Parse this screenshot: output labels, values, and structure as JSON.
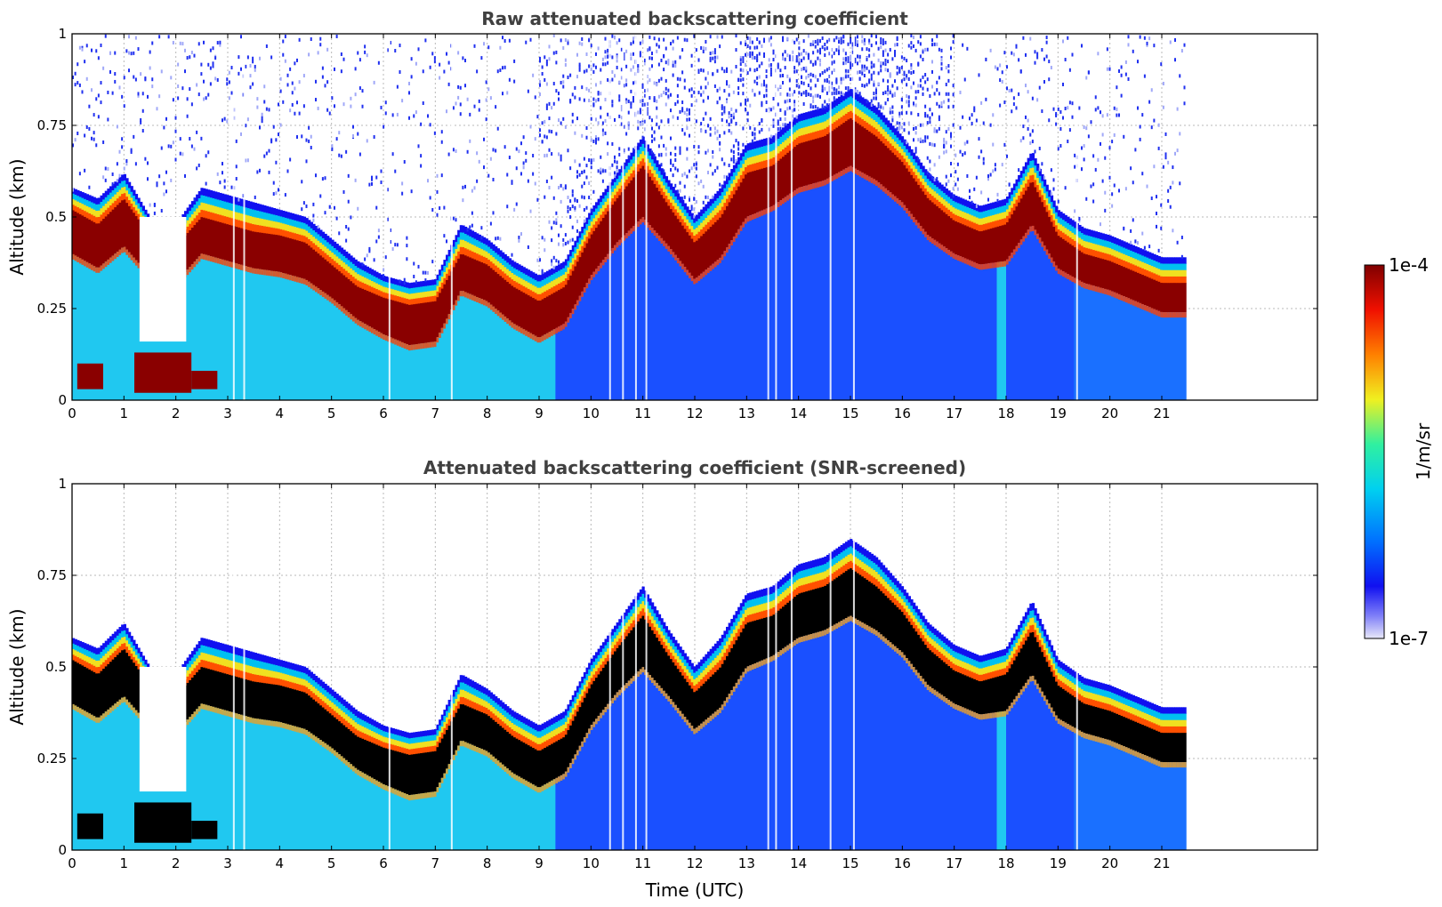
{
  "chart_data": [
    {
      "type": "heatmap",
      "title": "Raw attenuated backscattering coefficient",
      "xlabel": "",
      "ylabel": "Altitude (km)",
      "xlim": [
        0,
        24
      ],
      "ylim": [
        0,
        1
      ],
      "x_ticks": [
        "0",
        "1",
        "2",
        "3",
        "4",
        "5",
        "6",
        "7",
        "8",
        "9",
        "10",
        "11",
        "12",
        "13",
        "14",
        "15",
        "16",
        "17",
        "18",
        "19",
        "20",
        "21"
      ],
      "y_ticks": [
        "0",
        "0.25",
        "0.5",
        "0.75",
        "1"
      ],
      "grid": true,
      "data_end_time": 21.45,
      "layer_top": [
        [
          0,
          0.58
        ],
        [
          0.5,
          0.55
        ],
        [
          1.0,
          0.62
        ],
        [
          1.5,
          0.5
        ],
        [
          2.0,
          0.48
        ],
        [
          2.5,
          0.58
        ],
        [
          3.0,
          0.56
        ],
        [
          3.5,
          0.54
        ],
        [
          4.0,
          0.52
        ],
        [
          4.5,
          0.5
        ],
        [
          5.0,
          0.44
        ],
        [
          5.5,
          0.38
        ],
        [
          6.0,
          0.34
        ],
        [
          6.5,
          0.32
        ],
        [
          7.0,
          0.33
        ],
        [
          7.5,
          0.48
        ],
        [
          8.0,
          0.44
        ],
        [
          8.5,
          0.38
        ],
        [
          9.0,
          0.34
        ],
        [
          9.5,
          0.38
        ],
        [
          10.0,
          0.52
        ],
        [
          10.5,
          0.62
        ],
        [
          11.0,
          0.72
        ],
        [
          11.5,
          0.6
        ],
        [
          12.0,
          0.5
        ],
        [
          12.5,
          0.58
        ],
        [
          13.0,
          0.7
        ],
        [
          13.5,
          0.72
        ],
        [
          14.0,
          0.78
        ],
        [
          14.5,
          0.8
        ],
        [
          15.0,
          0.85
        ],
        [
          15.5,
          0.8
        ],
        [
          16.0,
          0.72
        ],
        [
          16.5,
          0.62
        ],
        [
          17.0,
          0.56
        ],
        [
          17.5,
          0.53
        ],
        [
          18.0,
          0.55
        ],
        [
          18.5,
          0.68
        ],
        [
          19.0,
          0.52
        ],
        [
          19.5,
          0.47
        ],
        [
          20.0,
          0.45
        ],
        [
          20.5,
          0.42
        ],
        [
          21.0,
          0.39
        ],
        [
          21.45,
          0.39
        ]
      ],
      "layer_core_top": [
        [
          0,
          0.52
        ],
        [
          0.5,
          0.48
        ],
        [
          1.0,
          0.55
        ],
        [
          1.5,
          0.45
        ],
        [
          2.0,
          0.42
        ],
        [
          2.5,
          0.5
        ],
        [
          3.0,
          0.48
        ],
        [
          3.5,
          0.46
        ],
        [
          4.0,
          0.45
        ],
        [
          4.5,
          0.43
        ],
        [
          5.0,
          0.37
        ],
        [
          5.5,
          0.31
        ],
        [
          6.0,
          0.28
        ],
        [
          6.5,
          0.26
        ],
        [
          7.0,
          0.27
        ],
        [
          7.5,
          0.4
        ],
        [
          8.0,
          0.37
        ],
        [
          8.5,
          0.31
        ],
        [
          9.0,
          0.27
        ],
        [
          9.5,
          0.31
        ],
        [
          10.0,
          0.45
        ],
        [
          10.5,
          0.55
        ],
        [
          11.0,
          0.64
        ],
        [
          11.5,
          0.53
        ],
        [
          12.0,
          0.43
        ],
        [
          12.5,
          0.5
        ],
        [
          13.0,
          0.62
        ],
        [
          13.5,
          0.64
        ],
        [
          14.0,
          0.7
        ],
        [
          14.5,
          0.72
        ],
        [
          15.0,
          0.77
        ],
        [
          15.5,
          0.72
        ],
        [
          16.0,
          0.65
        ],
        [
          16.5,
          0.55
        ],
        [
          17.0,
          0.49
        ],
        [
          17.5,
          0.46
        ],
        [
          18.0,
          0.48
        ],
        [
          18.5,
          0.6
        ],
        [
          19.0,
          0.45
        ],
        [
          19.5,
          0.4
        ],
        [
          20.0,
          0.38
        ],
        [
          20.5,
          0.35
        ],
        [
          21.0,
          0.32
        ],
        [
          21.45,
          0.32
        ]
      ],
      "layer_core_bottom": [
        [
          0,
          0.4
        ],
        [
          0.5,
          0.36
        ],
        [
          1.0,
          0.42
        ],
        [
          1.5,
          0.34
        ],
        [
          2.0,
          0.32
        ],
        [
          2.5,
          0.4
        ],
        [
          3.0,
          0.38
        ],
        [
          3.5,
          0.36
        ],
        [
          4.0,
          0.35
        ],
        [
          4.5,
          0.33
        ],
        [
          5.0,
          0.28
        ],
        [
          5.5,
          0.22
        ],
        [
          6.0,
          0.18
        ],
        [
          6.5,
          0.15
        ],
        [
          7.0,
          0.16
        ],
        [
          7.5,
          0.3
        ],
        [
          8.0,
          0.27
        ],
        [
          8.5,
          0.21
        ],
        [
          9.0,
          0.17
        ],
        [
          9.5,
          0.21
        ],
        [
          10.0,
          0.34
        ],
        [
          10.5,
          0.43
        ],
        [
          11.0,
          0.5
        ],
        [
          11.5,
          0.42
        ],
        [
          12.0,
          0.33
        ],
        [
          12.5,
          0.39
        ],
        [
          13.0,
          0.5
        ],
        [
          13.5,
          0.53
        ],
        [
          14.0,
          0.58
        ],
        [
          14.5,
          0.6
        ],
        [
          15.0,
          0.64
        ],
        [
          15.5,
          0.6
        ],
        [
          16.0,
          0.54
        ],
        [
          16.5,
          0.45
        ],
        [
          17.0,
          0.4
        ],
        [
          17.5,
          0.37
        ],
        [
          18.0,
          0.38
        ],
        [
          18.5,
          0.48
        ],
        [
          19.0,
          0.36
        ],
        [
          19.5,
          0.32
        ],
        [
          20.0,
          0.3
        ],
        [
          20.5,
          0.27
        ],
        [
          21.0,
          0.24
        ],
        [
          21.45,
          0.24
        ]
      ],
      "colorbar": {
        "label": "1/m/sr",
        "min_label": "1e-7",
        "max_label": "1e-4",
        "scale": "log"
      }
    },
    {
      "type": "heatmap",
      "title": "Attenuated backscattering coefficient (SNR-screened)",
      "xlabel": "Time (UTC)",
      "ylabel": "Altitude (km)",
      "xlim": [
        0,
        24
      ],
      "ylim": [
        0,
        1
      ],
      "x_ticks": [
        "0",
        "1",
        "2",
        "3",
        "4",
        "5",
        "6",
        "7",
        "8",
        "9",
        "10",
        "11",
        "12",
        "13",
        "14",
        "15",
        "16",
        "17",
        "18",
        "19",
        "20",
        "21"
      ],
      "y_ticks": [
        "0",
        "0.25",
        "0.5",
        "0.75",
        "1"
      ],
      "grid": true,
      "data_end_time": 21.45,
      "masked_color": "#000000"
    }
  ],
  "colorbar": {
    "label": "1/m/sr",
    "min_label": "1e-7",
    "max_label": "1e-4",
    "colors": [
      "#e8e8f8",
      "#1010f0",
      "#0070ff",
      "#00d0f0",
      "#30f0a0",
      "#f0f020",
      "#ff8000",
      "#f01000",
      "#800000"
    ]
  }
}
